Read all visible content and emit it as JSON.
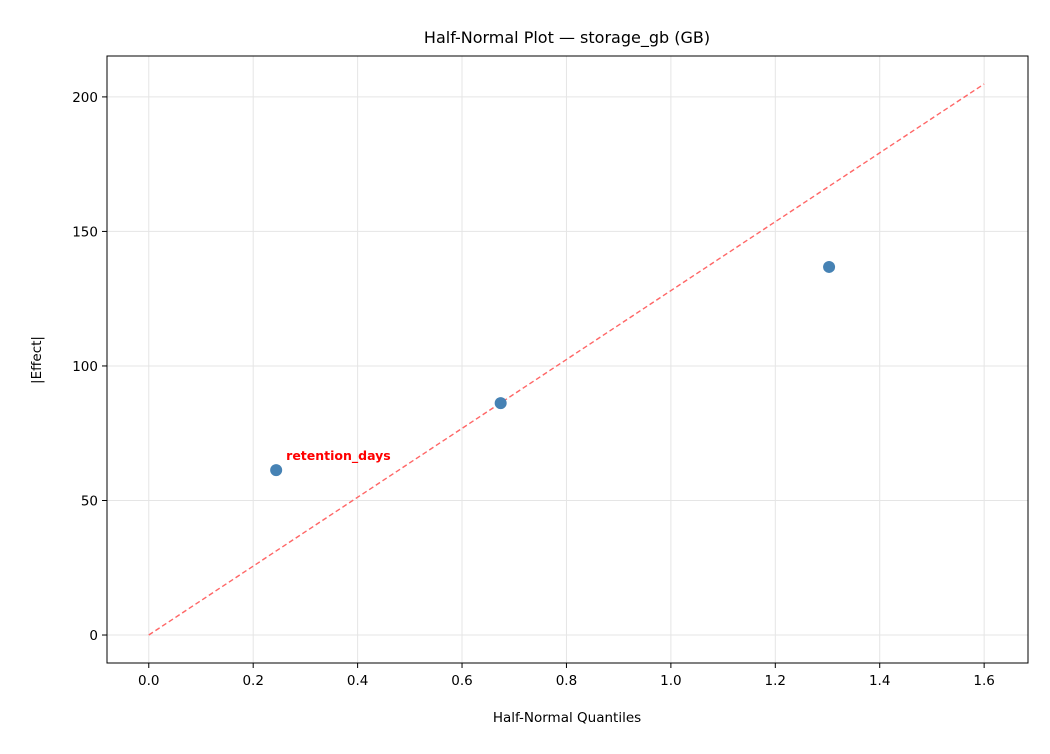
{
  "chart_data": {
    "type": "scatter",
    "title": "Half-Normal Plot — storage_gb (GB)",
    "xlabel": "Half-Normal Quantiles",
    "ylabel": "|Effect|",
    "xlim": [
      -0.08,
      1.684
    ],
    "ylim": [
      -10.4,
      215.2
    ],
    "xticks": [
      0.0,
      0.2,
      0.4,
      0.6,
      0.8,
      1.0,
      1.2,
      1.4,
      1.6
    ],
    "xtick_labels": [
      "0.0",
      "0.2",
      "0.4",
      "0.6",
      "0.8",
      "1.0",
      "1.2",
      "1.4",
      "1.6"
    ],
    "yticks": [
      0,
      50,
      100,
      150,
      200
    ],
    "ytick_labels": [
      "0",
      "50",
      "100",
      "150",
      "200"
    ],
    "grid": true,
    "points": [
      {
        "x": 0.244,
        "y": 61.3
      },
      {
        "x": 0.674,
        "y": 86.2
      },
      {
        "x": 1.303,
        "y": 136.8
      }
    ],
    "reference_line": {
      "x": [
        0,
        1.6
      ],
      "y": [
        0,
        204.8
      ],
      "style": "dashed"
    },
    "annotations": [
      {
        "text": "retention_days",
        "x": 0.244,
        "y": 61.3
      }
    ],
    "colors": {
      "points": "#4682b4",
      "reference_line": "#ff6666",
      "annotation": "#ff0000",
      "grid": "#e5e5e5"
    }
  }
}
